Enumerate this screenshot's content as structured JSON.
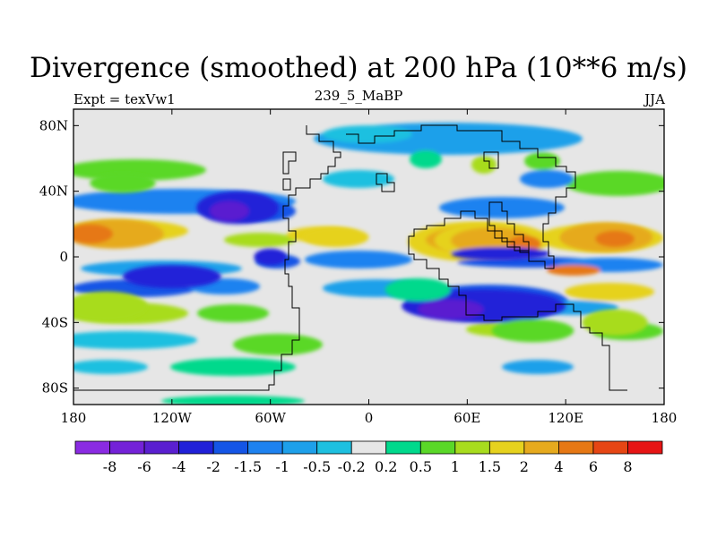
{
  "title": "Divergence (smoothed) at 200 hPa (10**6 m/s)",
  "subtitle_left": "Expt = texVw1",
  "subtitle_center": "239_5_MaBP",
  "subtitle_right": "JJA",
  "chart_data": {
    "type": "heatmap",
    "title": "Divergence (smoothed) at 200 hPa (10**6 m/s)",
    "variable": "Divergence (smoothed) at 200 hPa",
    "units": "10**6 m/s",
    "season": "JJA",
    "xlim": [
      -180,
      180
    ],
    "ylim": [
      -90,
      90
    ],
    "x_ticks": [
      -180,
      -120,
      -60,
      0,
      60,
      120,
      180
    ],
    "x_tick_labels": [
      "180",
      "120W",
      "60W",
      "0",
      "60E",
      "120E",
      "180"
    ],
    "y_ticks": [
      80,
      40,
      0,
      -40,
      -80
    ],
    "y_tick_labels": [
      "80N",
      "40N",
      "0",
      "40S",
      "80S"
    ],
    "colorbar": {
      "levels": [
        "-8",
        "-6",
        "-4",
        "-2",
        "-1.5",
        "-1",
        "-0.5",
        "-0.2",
        "0.2",
        "0.5",
        "1",
        "1.5",
        "2",
        "4",
        "6",
        "8"
      ],
      "colors": [
        "#8a2be2",
        "#7422d8",
        "#5a1fd0",
        "#2020d8",
        "#1455e6",
        "#1e82f0",
        "#1ea0ea",
        "#1ec0e0",
        "#e6e6e6",
        "#00d98c",
        "#5ad828",
        "#a8dc1e",
        "#e6d21e",
        "#e6aa1e",
        "#e67814",
        "#e64614",
        "#e61414"
      ]
    },
    "field_blobs": [
      {
        "lon": -155,
        "lat": 14,
        "rx": 30,
        "ry": 9,
        "value": 4
      },
      {
        "lon": -170,
        "lat": 14,
        "rx": 14,
        "ry": 6,
        "value": 6
      },
      {
        "lon": 75,
        "lat": 10,
        "rx": 35,
        "ry": 11,
        "value": 2
      },
      {
        "lon": 75,
        "lat": 10,
        "rx": 25,
        "ry": 8,
        "value": 4
      },
      {
        "lon": 95,
        "lat": 8,
        "rx": 10,
        "ry": 5,
        "value": 6
      },
      {
        "lon": 145,
        "lat": 12,
        "rx": 28,
        "ry": 9,
        "value": 4
      },
      {
        "lon": 150,
        "lat": 11,
        "rx": 12,
        "ry": 5,
        "value": 6
      },
      {
        "lon": -80,
        "lat": 30,
        "rx": 25,
        "ry": 10,
        "value": -2
      },
      {
        "lon": -85,
        "lat": 28,
        "rx": 12,
        "ry": 6,
        "value": -4
      },
      {
        "lon": -120,
        "lat": -12,
        "rx": 30,
        "ry": 7,
        "value": -2
      },
      {
        "lon": -60,
        "lat": 0,
        "rx": 10,
        "ry": 5,
        "value": -2
      },
      {
        "lon": 70,
        "lat": -30,
        "rx": 50,
        "ry": 10,
        "value": -2
      },
      {
        "lon": 50,
        "lat": -32,
        "rx": 20,
        "ry": 6,
        "value": -4
      },
      {
        "lon": 80,
        "lat": 2,
        "rx": 30,
        "ry": 4,
        "value": -2
      },
      {
        "lon": -160,
        "lat": -30,
        "rx": 25,
        "ry": 9,
        "value": 1.5
      },
      {
        "lon": 150,
        "lat": -40,
        "rx": 20,
        "ry": 8,
        "value": 1.5
      },
      {
        "lon": -150,
        "lat": 45,
        "rx": 20,
        "ry": 6,
        "value": 1
      },
      {
        "lon": 100,
        "lat": -45,
        "rx": 25,
        "ry": 7,
        "value": 1
      },
      {
        "lon": -20,
        "lat": 12,
        "rx": 20,
        "ry": 6,
        "value": 2
      },
      {
        "lon": 30,
        "lat": -20,
        "rx": 20,
        "ry": 7,
        "value": 0.5
      }
    ]
  }
}
